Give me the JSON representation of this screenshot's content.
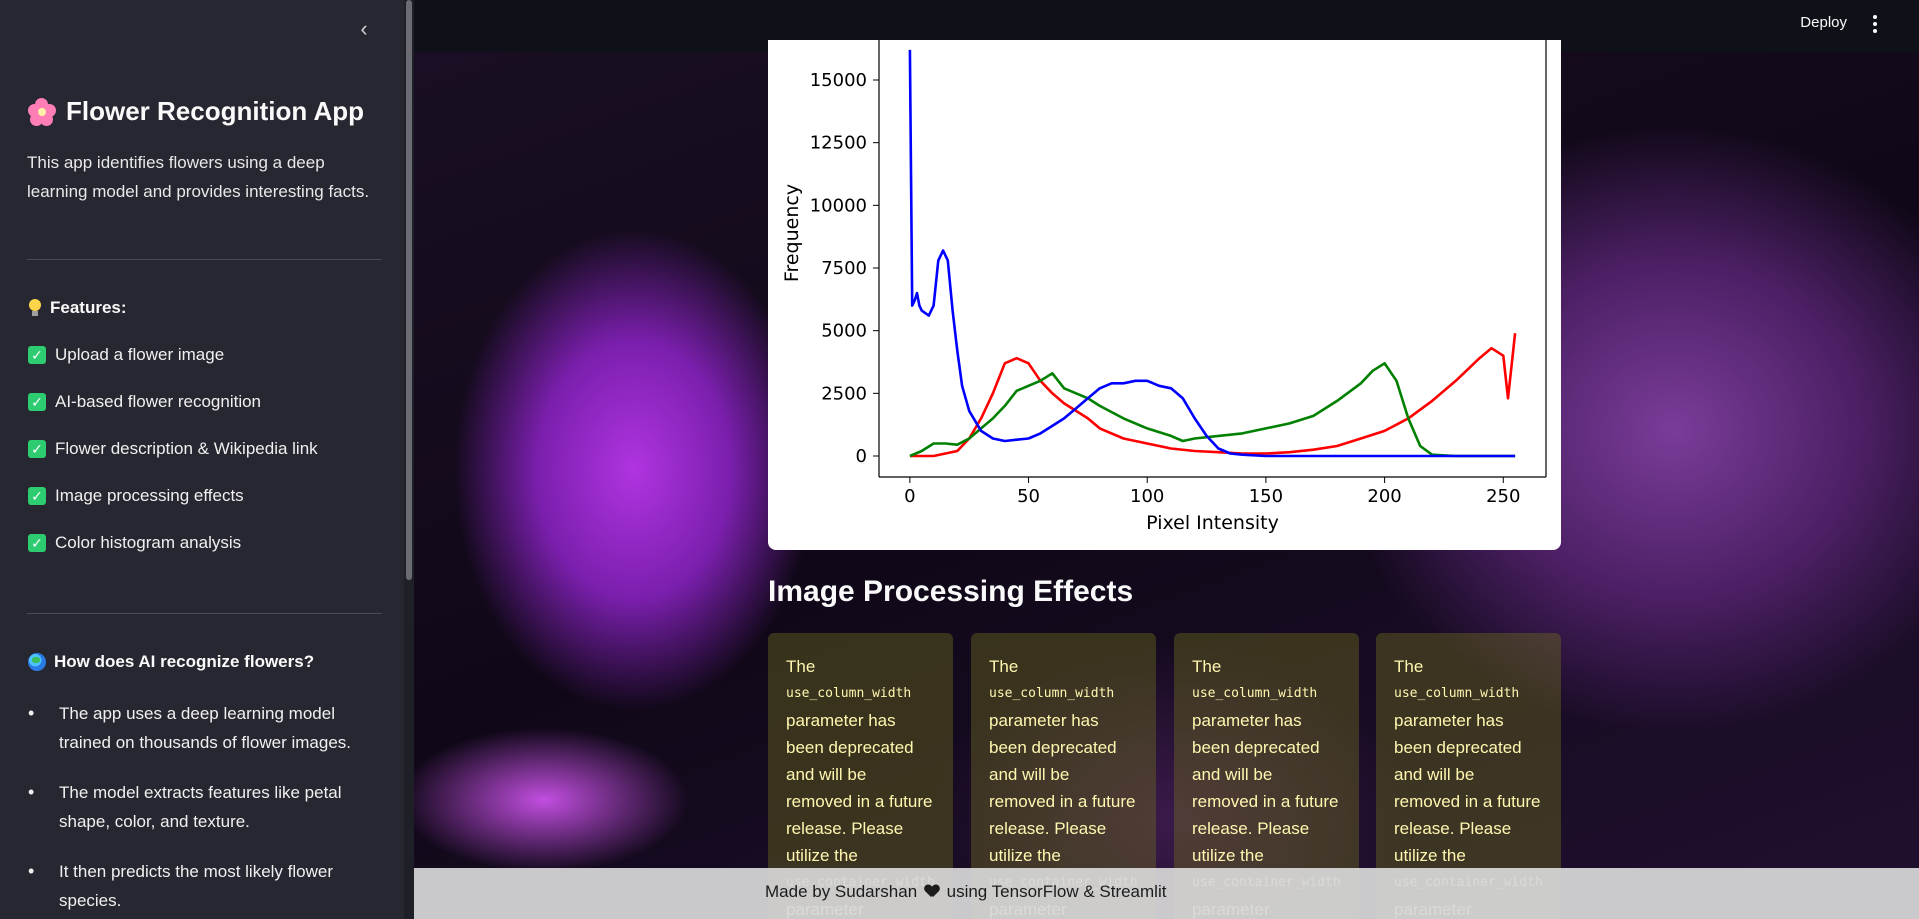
{
  "sidebar": {
    "collapse_icon": "chevron-left-icon",
    "title": "Flower Recognition App",
    "title_icon": "flower-icon",
    "description": "This app identifies flowers using a deep learning model and provides interesting facts.",
    "features_heading": "Features:",
    "features": [
      "Upload a flower image",
      "AI-based flower recognition",
      "Flower description & Wikipedia link",
      "Image processing effects",
      "Color histogram analysis"
    ],
    "how_heading": "How does AI recognize flowers?",
    "how_points": [
      "The app uses a deep learning model trained on thousands of flower images.",
      "The model extracts features like petal shape, color, and texture.",
      "It then predicts the most likely flower species."
    ]
  },
  "header": {
    "deploy_label": "Deploy",
    "menu_icon": "vertical-dots-icon"
  },
  "chart_data": {
    "type": "line",
    "title": "",
    "xlabel": "Pixel Intensity",
    "ylabel": "Frequency",
    "xlim": [
      -13,
      268
    ],
    "ylim": [
      -700,
      16000
    ],
    "xticks": [
      0,
      50,
      100,
      150,
      200,
      250
    ],
    "yticks": [
      0,
      2500,
      5000,
      7500,
      10000,
      12500,
      15000
    ],
    "series": [
      {
        "color": "#ff0000",
        "points": [
          [
            0,
            0
          ],
          [
            10,
            0
          ],
          [
            20,
            200
          ],
          [
            25,
            700
          ],
          [
            30,
            1500
          ],
          [
            35,
            2500
          ],
          [
            40,
            3700
          ],
          [
            45,
            3900
          ],
          [
            50,
            3700
          ],
          [
            55,
            3000
          ],
          [
            60,
            2500
          ],
          [
            65,
            2100
          ],
          [
            70,
            1800
          ],
          [
            75,
            1500
          ],
          [
            80,
            1100
          ],
          [
            90,
            700
          ],
          [
            100,
            500
          ],
          [
            110,
            300
          ],
          [
            120,
            200
          ],
          [
            130,
            150
          ],
          [
            140,
            100
          ],
          [
            150,
            100
          ],
          [
            160,
            150
          ],
          [
            170,
            250
          ],
          [
            180,
            400
          ],
          [
            190,
            700
          ],
          [
            200,
            1000
          ],
          [
            210,
            1500
          ],
          [
            220,
            2200
          ],
          [
            230,
            3000
          ],
          [
            240,
            3900
          ],
          [
            245,
            4300
          ],
          [
            250,
            4000
          ],
          [
            252,
            2300
          ],
          [
            255,
            4900
          ]
        ]
      },
      {
        "color": "#008000",
        "points": [
          [
            0,
            0
          ],
          [
            5,
            200
          ],
          [
            10,
            500
          ],
          [
            15,
            500
          ],
          [
            20,
            450
          ],
          [
            25,
            700
          ],
          [
            30,
            1100
          ],
          [
            35,
            1500
          ],
          [
            40,
            2000
          ],
          [
            45,
            2600
          ],
          [
            50,
            2800
          ],
          [
            55,
            3000
          ],
          [
            60,
            3300
          ],
          [
            65,
            2700
          ],
          [
            70,
            2500
          ],
          [
            75,
            2300
          ],
          [
            80,
            2000
          ],
          [
            90,
            1500
          ],
          [
            100,
            1100
          ],
          [
            110,
            800
          ],
          [
            115,
            600
          ],
          [
            120,
            700
          ],
          [
            130,
            800
          ],
          [
            140,
            900
          ],
          [
            150,
            1100
          ],
          [
            160,
            1300
          ],
          [
            170,
            1600
          ],
          [
            180,
            2200
          ],
          [
            190,
            2900
          ],
          [
            195,
            3400
          ],
          [
            200,
            3700
          ],
          [
            205,
            3000
          ],
          [
            210,
            1500
          ],
          [
            215,
            400
          ],
          [
            220,
            50
          ],
          [
            230,
            0
          ],
          [
            255,
            0
          ]
        ]
      },
      {
        "color": "#0000ff",
        "points": [
          [
            0,
            16200
          ],
          [
            1,
            6000
          ],
          [
            2,
            6200
          ],
          [
            3,
            6500
          ],
          [
            4,
            6000
          ],
          [
            5,
            5800
          ],
          [
            8,
            5600
          ],
          [
            10,
            6000
          ],
          [
            12,
            7800
          ],
          [
            14,
            8200
          ],
          [
            16,
            7800
          ],
          [
            18,
            5800
          ],
          [
            20,
            4200
          ],
          [
            22,
            2800
          ],
          [
            25,
            1800
          ],
          [
            30,
            1000
          ],
          [
            35,
            700
          ],
          [
            40,
            600
          ],
          [
            45,
            650
          ],
          [
            50,
            700
          ],
          [
            55,
            900
          ],
          [
            60,
            1200
          ],
          [
            65,
            1500
          ],
          [
            70,
            1900
          ],
          [
            75,
            2300
          ],
          [
            80,
            2700
          ],
          [
            85,
            2900
          ],
          [
            90,
            2900
          ],
          [
            95,
            3000
          ],
          [
            100,
            3000
          ],
          [
            105,
            2800
          ],
          [
            110,
            2700
          ],
          [
            115,
            2300
          ],
          [
            120,
            1500
          ],
          [
            125,
            800
          ],
          [
            130,
            300
          ],
          [
            135,
            100
          ],
          [
            140,
            50
          ],
          [
            150,
            0
          ],
          [
            255,
            0
          ]
        ]
      }
    ]
  },
  "effects": {
    "title": "Image Processing Effects",
    "cards": [
      {
        "text_a": "The",
        "code_a": "use_column_width",
        "text_b": "parameter has been deprecated and will be removed in a future release. Please utilize the",
        "code_b": "use_container_width",
        "text_c": "parameter"
      },
      {
        "text_a": "The",
        "code_a": "use_column_width",
        "text_b": "parameter has been deprecated and will be removed in a future release. Please utilize the",
        "code_b": "use_container_width",
        "text_c": "parameter"
      },
      {
        "text_a": "The",
        "code_a": "use_column_width",
        "text_b": "parameter has been deprecated and will be removed in a future release. Please utilize the",
        "code_b": "use_container_width",
        "text_c": "parameter"
      },
      {
        "text_a": "The",
        "code_a": "use_column_width",
        "text_b": "parameter has been deprecated and will be removed in a future release. Please utilize the",
        "code_b": "use_container_width",
        "text_c": "parameter"
      }
    ]
  },
  "footer": {
    "made_by": "Made by Sudarshan",
    "heart_icon": "heart-icon",
    "using": "using TensorFlow & Streamlit"
  }
}
